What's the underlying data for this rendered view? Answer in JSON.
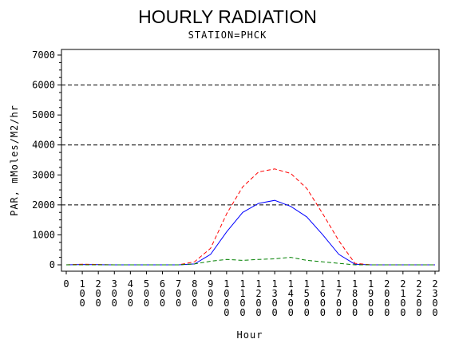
{
  "chart_data": {
    "type": "line",
    "title": "HOURLY RADIATION",
    "subtitle": "STATION=PHCK",
    "xlabel": "Hour",
    "ylabel": "PAR, mMoles/M2/hr",
    "xlim": [
      0,
      2300
    ],
    "ylim": [
      0,
      7000
    ],
    "x_ticks": [
      0,
      100,
      200,
      300,
      400,
      500,
      600,
      700,
      800,
      900,
      1000,
      1100,
      1200,
      1300,
      1400,
      1500,
      1600,
      1700,
      1800,
      1900,
      2000,
      2100,
      2200,
      2300
    ],
    "x_tick_labels": [
      "0",
      "100",
      "200",
      "300",
      "400",
      "500",
      "600",
      "700",
      "800",
      "900",
      "1000",
      "1100",
      "1200",
      "1300",
      "1400",
      "1500",
      "1600",
      "1700",
      "1800",
      "1900",
      "2000",
      "2100",
      "2200",
      "2300"
    ],
    "y_ticks": [
      0,
      1000,
      2000,
      3000,
      4000,
      5000,
      6000,
      7000
    ],
    "y_tick_labels": [
      "0",
      "1000",
      "2000",
      "3000",
      "4000",
      "5000",
      "6000",
      "7000"
    ],
    "reference_lines": [
      2000,
      4000,
      6000
    ],
    "x": [
      0,
      100,
      200,
      300,
      400,
      500,
      600,
      700,
      800,
      900,
      1000,
      1100,
      1200,
      1300,
      1400,
      1500,
      1600,
      1700,
      1800,
      1900,
      2000,
      2100,
      2200,
      2300
    ],
    "series": [
      {
        "color": "#0000ff",
        "dash": "solid",
        "values": [
          0,
          10,
          5,
          0,
          0,
          0,
          0,
          0,
          30,
          350,
          1100,
          1750,
          2050,
          2150,
          1950,
          1600,
          1000,
          350,
          20,
          0,
          0,
          0,
          0,
          0
        ]
      },
      {
        "color": "#ff0000",
        "dash": "dashed",
        "values": [
          0,
          20,
          10,
          0,
          0,
          0,
          0,
          0,
          100,
          550,
          1700,
          2600,
          3100,
          3200,
          3050,
          2550,
          1700,
          800,
          50,
          0,
          0,
          0,
          0,
          0
        ]
      },
      {
        "color": "#008000",
        "dash": "dashed",
        "values": [
          0,
          0,
          0,
          0,
          0,
          0,
          0,
          0,
          30,
          120,
          180,
          150,
          180,
          200,
          250,
          150,
          100,
          50,
          0,
          0,
          0,
          0,
          0,
          0
        ]
      }
    ]
  }
}
